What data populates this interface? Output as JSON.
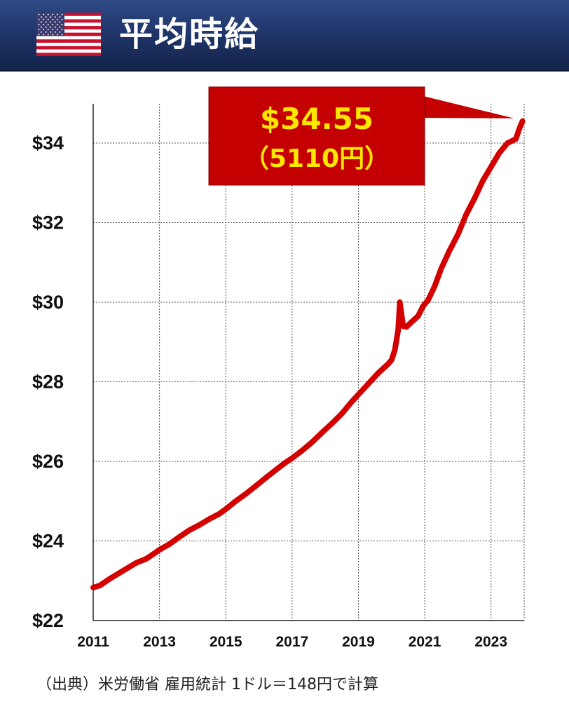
{
  "header": {
    "title": "平均時給",
    "flag_icon": "us-flag-icon"
  },
  "source_note": "（出典）米労働省 雇用統計 1ドル＝148円で計算",
  "colors": {
    "header_bg": "#1d3266",
    "line": "#d40000",
    "callout_bg": "#c40000",
    "callout_text": "#ffe600"
  },
  "chart_data": {
    "type": "line",
    "title": "",
    "xlabel": "",
    "ylabel": "",
    "xlim": [
      2011.0,
      2024.0
    ],
    "ylim": [
      22,
      35
    ],
    "x_ticks": [
      2011,
      2013,
      2015,
      2017,
      2019,
      2021,
      2023
    ],
    "x_tick_labels": [
      "2011",
      "2013",
      "2015",
      "2017",
      "2019",
      "2021",
      "2023"
    ],
    "y_ticks": [
      22,
      24,
      26,
      28,
      30,
      32,
      34
    ],
    "y_tick_labels": [
      "$22",
      "$24",
      "$26",
      "$28",
      "$30",
      "$32",
      "$34"
    ],
    "grid": true,
    "series": [
      {
        "name": "",
        "x": [
          2011.0,
          2011.2,
          2011.5,
          2011.8,
          2012.0,
          2012.3,
          2012.6,
          2012.9,
          2013.0,
          2013.3,
          2013.6,
          2013.9,
          2014.2,
          2014.5,
          2014.8,
          2015.0,
          2015.3,
          2015.6,
          2015.9,
          2016.2,
          2016.5,
          2016.8,
          2017.0,
          2017.3,
          2017.6,
          2017.9,
          2018.2,
          2018.5,
          2018.8,
          2019.0,
          2019.3,
          2019.6,
          2019.9,
          2020.0,
          2020.1,
          2020.2,
          2020.25,
          2020.35,
          2020.45,
          2020.6,
          2020.8,
          2020.95,
          2021.1,
          2021.3,
          2021.5,
          2021.75,
          2022.0,
          2022.25,
          2022.5,
          2022.75,
          2023.0,
          2023.25,
          2023.5,
          2023.75,
          2023.85,
          2023.95
        ],
        "y": [
          22.83,
          22.88,
          23.05,
          23.2,
          23.3,
          23.45,
          23.55,
          23.72,
          23.78,
          23.92,
          24.1,
          24.27,
          24.4,
          24.55,
          24.68,
          24.8,
          25.0,
          25.18,
          25.38,
          25.58,
          25.78,
          25.97,
          26.08,
          26.27,
          26.48,
          26.72,
          26.95,
          27.2,
          27.5,
          27.68,
          27.95,
          28.22,
          28.45,
          28.55,
          28.8,
          29.3,
          30.0,
          29.4,
          29.38,
          29.5,
          29.65,
          29.9,
          30.05,
          30.4,
          30.85,
          31.3,
          31.7,
          32.2,
          32.6,
          33.05,
          33.4,
          33.75,
          34.0,
          34.1,
          34.35,
          34.55
        ]
      }
    ],
    "annotations": [
      {
        "text": "$34.55",
        "x": 2023.95,
        "y": 34.55
      },
      {
        "text": "（5110円）",
        "x": 2023.95,
        "y": 34.55
      }
    ]
  }
}
